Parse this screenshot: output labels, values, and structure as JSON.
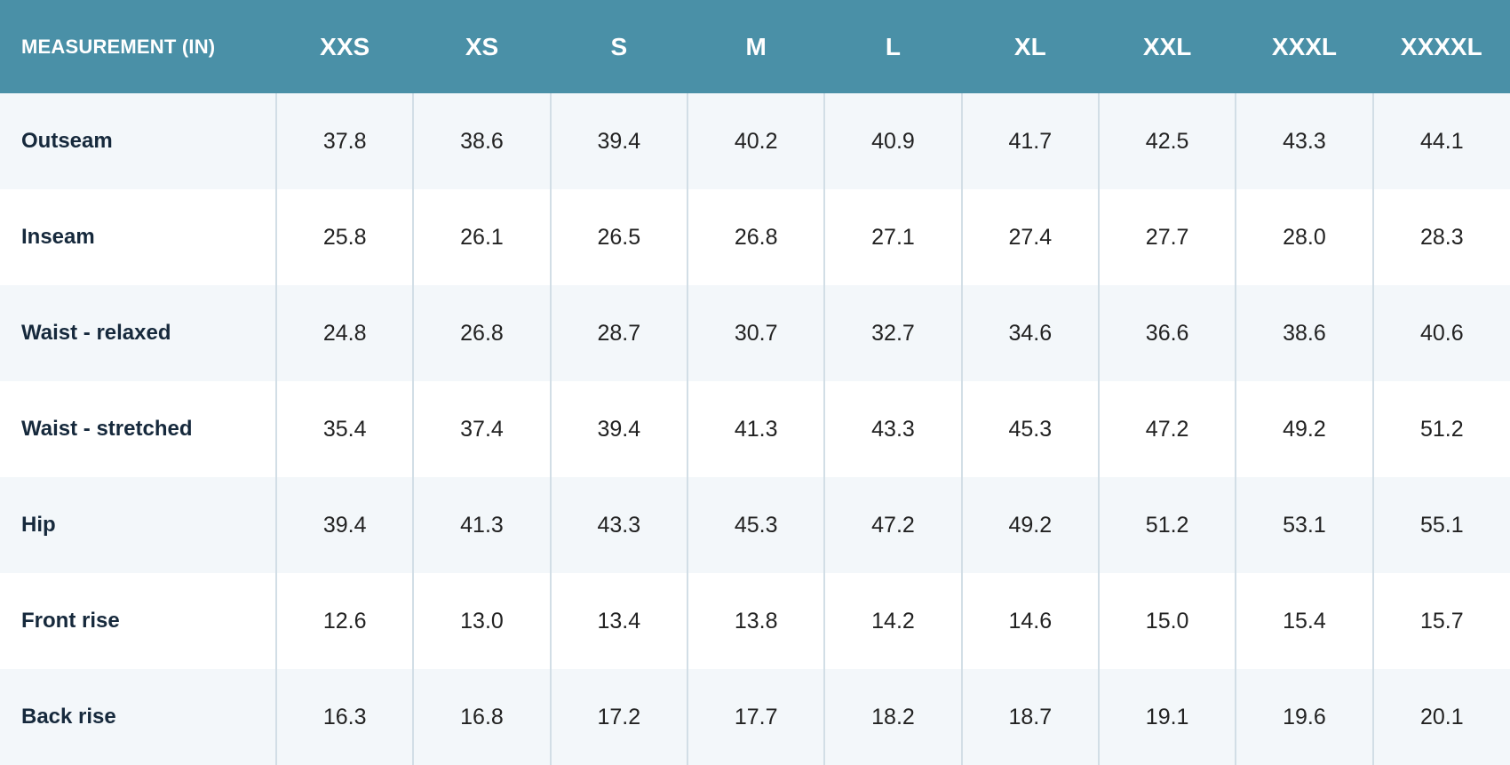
{
  "table": {
    "header": {
      "first": "MEASUREMENT (IN)",
      "sizes": [
        "XXS",
        "XS",
        "S",
        "M",
        "L",
        "XL",
        "XXL",
        "XXXL",
        "XXXXL"
      ]
    },
    "rows": [
      {
        "label": "Outseam",
        "values": [
          "37.8",
          "38.6",
          "39.4",
          "40.2",
          "40.9",
          "41.7",
          "42.5",
          "43.3",
          "44.1"
        ]
      },
      {
        "label": "Inseam",
        "values": [
          "25.8",
          "26.1",
          "26.5",
          "26.8",
          "27.1",
          "27.4",
          "27.7",
          "28.0",
          "28.3"
        ]
      },
      {
        "label": "Waist - relaxed",
        "values": [
          "24.8",
          "26.8",
          "28.7",
          "30.7",
          "32.7",
          "34.6",
          "36.6",
          "38.6",
          "40.6"
        ]
      },
      {
        "label": "Waist - stretched",
        "values": [
          "35.4",
          "37.4",
          "39.4",
          "41.3",
          "43.3",
          "45.3",
          "47.2",
          "49.2",
          "51.2"
        ]
      },
      {
        "label": "Hip",
        "values": [
          "39.4",
          "41.3",
          "43.3",
          "45.3",
          "47.2",
          "49.2",
          "51.2",
          "53.1",
          "55.1"
        ]
      },
      {
        "label": "Front rise",
        "values": [
          "12.6",
          "13.0",
          "13.4",
          "13.8",
          "14.2",
          "14.6",
          "15.0",
          "15.4",
          "15.7"
        ]
      },
      {
        "label": "Back rise",
        "values": [
          "16.3",
          "16.8",
          "17.2",
          "17.7",
          "18.2",
          "18.7",
          "19.1",
          "19.6",
          "20.1"
        ]
      }
    ]
  },
  "colors": {
    "header_bg": "#4a90a7",
    "header_text": "#ffffff",
    "row_alt_bg": "#f3f7fa",
    "row_bg": "#ffffff",
    "label_text": "#16293c",
    "divider": "#d2dee6"
  }
}
